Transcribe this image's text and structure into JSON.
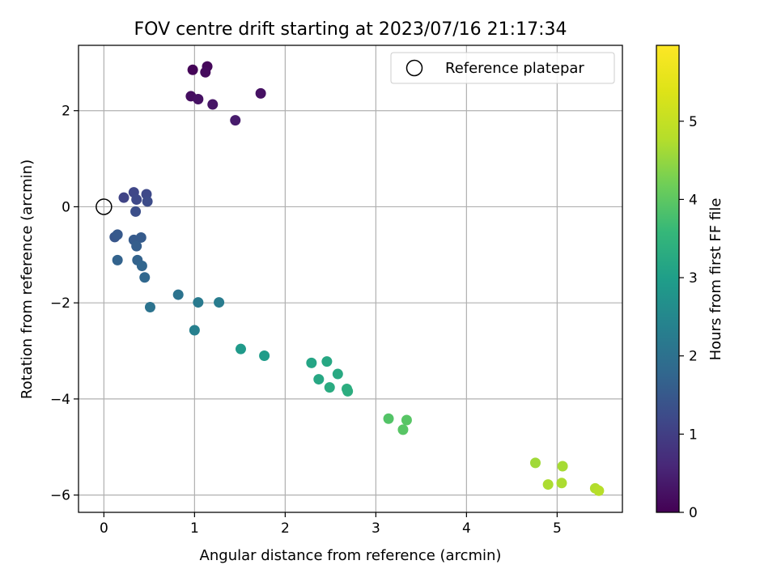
{
  "chart_data": {
    "type": "scatter",
    "title": "FOV centre drift starting at 2023/07/16 21:17:34",
    "xlabel": "Angular distance from reference (arcmin)",
    "ylabel": "Rotation from reference (arcmin)",
    "xlim": [
      -0.28,
      5.72
    ],
    "ylim": [
      -6.36,
      3.36
    ],
    "xticks": [
      0,
      1,
      2,
      3,
      4,
      5
    ],
    "yticks": [
      -6,
      -4,
      -2,
      0,
      2
    ],
    "grid": true,
    "legend": {
      "placement": "top-right",
      "entries": [
        "Reference platepar"
      ]
    },
    "reference_point": {
      "name": "Reference platepar",
      "x": 0,
      "y": 0
    },
    "colorbar": {
      "label": "Hours from first FF file",
      "range": [
        0,
        5.97
      ],
      "ticks": [
        0,
        1,
        2,
        3,
        4,
        5
      ],
      "colormap": "viridis"
    },
    "points": [
      {
        "x": 0.98,
        "y": 2.85,
        "c": 0.05
      },
      {
        "x": 1.14,
        "y": 2.92,
        "c": 0.1
      },
      {
        "x": 1.12,
        "y": 2.8,
        "c": 0.15
      },
      {
        "x": 0.96,
        "y": 2.3,
        "c": 0.2
      },
      {
        "x": 1.04,
        "y": 2.24,
        "c": 0.25
      },
      {
        "x": 1.2,
        "y": 2.13,
        "c": 0.3
      },
      {
        "x": 1.73,
        "y": 2.36,
        "c": 0.25
      },
      {
        "x": 1.45,
        "y": 1.8,
        "c": 0.4
      },
      {
        "x": 0.22,
        "y": 0.19,
        "c": 1.1
      },
      {
        "x": 0.33,
        "y": 0.3,
        "c": 1.15
      },
      {
        "x": 0.36,
        "y": 0.15,
        "c": 1.2
      },
      {
        "x": 0.47,
        "y": 0.26,
        "c": 1.2
      },
      {
        "x": 0.48,
        "y": 0.11,
        "c": 1.25
      },
      {
        "x": 0.35,
        "y": -0.1,
        "c": 1.3
      },
      {
        "x": 0.12,
        "y": -0.63,
        "c": 1.45
      },
      {
        "x": 0.15,
        "y": -0.58,
        "c": 1.5
      },
      {
        "x": 0.33,
        "y": -0.69,
        "c": 1.55
      },
      {
        "x": 0.41,
        "y": -0.64,
        "c": 1.55
      },
      {
        "x": 0.36,
        "y": -0.82,
        "c": 1.6
      },
      {
        "x": 0.15,
        "y": -1.11,
        "c": 1.7
      },
      {
        "x": 0.37,
        "y": -1.11,
        "c": 1.7
      },
      {
        "x": 0.42,
        "y": -1.23,
        "c": 1.75
      },
      {
        "x": 0.45,
        "y": -1.47,
        "c": 1.8
      },
      {
        "x": 0.82,
        "y": -1.83,
        "c": 2.05
      },
      {
        "x": 1.04,
        "y": -1.99,
        "c": 2.2
      },
      {
        "x": 1.27,
        "y": -1.99,
        "c": 2.25
      },
      {
        "x": 0.51,
        "y": -2.09,
        "c": 2.05
      },
      {
        "x": 1.0,
        "y": -2.57,
        "c": 2.35
      },
      {
        "x": 1.51,
        "y": -2.96,
        "c": 2.9
      },
      {
        "x": 1.77,
        "y": -3.1,
        "c": 2.95
      },
      {
        "x": 2.29,
        "y": -3.25,
        "c": 3.15
      },
      {
        "x": 2.46,
        "y": -3.22,
        "c": 3.2
      },
      {
        "x": 2.37,
        "y": -3.59,
        "c": 3.2
      },
      {
        "x": 2.58,
        "y": -3.48,
        "c": 3.25
      },
      {
        "x": 2.49,
        "y": -3.76,
        "c": 3.3
      },
      {
        "x": 2.68,
        "y": -3.79,
        "c": 3.35
      },
      {
        "x": 2.69,
        "y": -3.84,
        "c": 3.35
      },
      {
        "x": 3.14,
        "y": -4.41,
        "c": 3.9
      },
      {
        "x": 3.34,
        "y": -4.44,
        "c": 3.95
      },
      {
        "x": 3.3,
        "y": -4.64,
        "c": 3.95
      },
      {
        "x": 4.76,
        "y": -5.33,
        "c": 4.6
      },
      {
        "x": 5.06,
        "y": -5.4,
        "c": 4.65
      },
      {
        "x": 4.9,
        "y": -5.78,
        "c": 4.7
      },
      {
        "x": 5.05,
        "y": -5.75,
        "c": 4.7
      },
      {
        "x": 5.42,
        "y": -5.86,
        "c": 4.75
      },
      {
        "x": 5.46,
        "y": -5.91,
        "c": 4.8
      }
    ]
  }
}
